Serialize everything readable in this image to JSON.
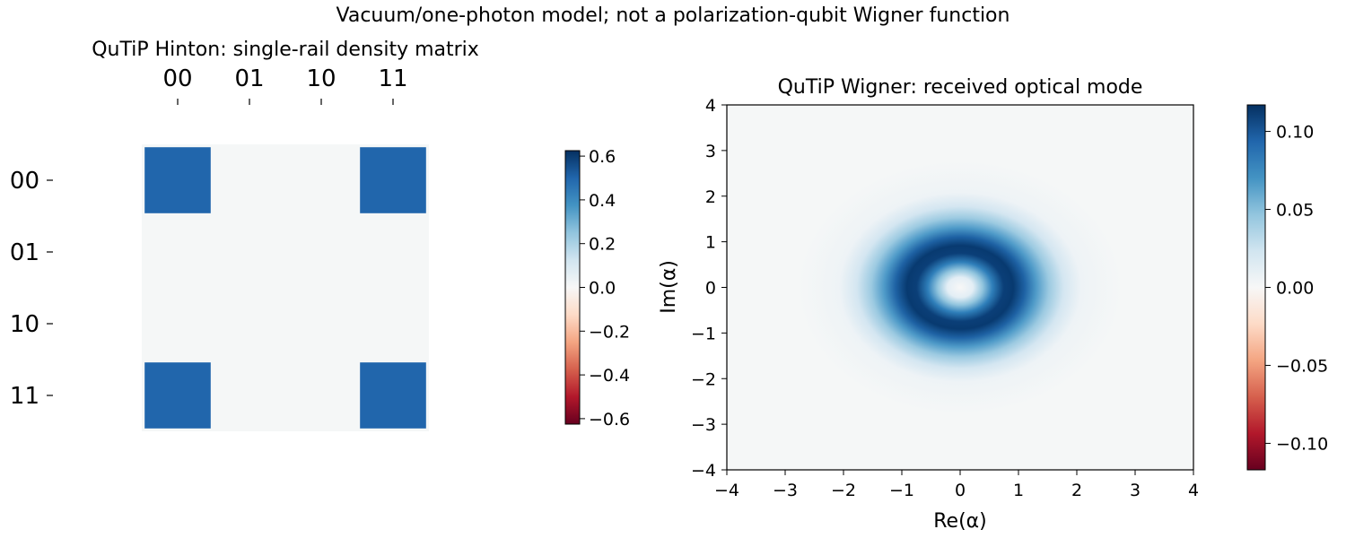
{
  "figure": {
    "suptitle": "Vacuum/one-photon model; not a polarization-qubit Wigner function"
  },
  "chart_data": [
    {
      "type": "heatmap",
      "subtype": "hinton",
      "title": "QuTiP Hinton: single-rail density matrix",
      "xlabel": "",
      "ylabel": "",
      "x_categories": [
        "00",
        "01",
        "10",
        "11"
      ],
      "y_categories": [
        "00",
        "01",
        "10",
        "11"
      ],
      "matrix": [
        [
          0.5,
          0,
          0,
          0.5
        ],
        [
          0,
          0,
          0,
          0
        ],
        [
          0,
          0,
          0,
          0
        ],
        [
          0.5,
          0,
          0,
          0.5
        ]
      ],
      "colorbar": {
        "range": [
          -0.625,
          0.625
        ],
        "ticks": [
          "0.6",
          "0.4",
          "0.2",
          "0.0",
          "−0.2",
          "−0.4",
          "−0.6"
        ],
        "tick_values": [
          0.6,
          0.4,
          0.2,
          0.0,
          -0.2,
          -0.4,
          -0.6
        ],
        "colormap": "RdBu"
      },
      "background_color": "#f5f7f7",
      "grid": false
    },
    {
      "type": "heatmap",
      "subtype": "wigner",
      "title": "QuTiP Wigner: received optical mode",
      "xlabel": "Re(α)",
      "ylabel": "Im(α)",
      "xlim": [
        -4,
        4
      ],
      "ylim": [
        -4,
        4
      ],
      "x_ticks": [
        "−4",
        "−3",
        "−2",
        "−1",
        "0",
        "1",
        "2",
        "3",
        "4"
      ],
      "y_ticks": [
        "4",
        "3",
        "2",
        "1",
        "0",
        "−1",
        "−2",
        "−3",
        "−4"
      ],
      "function": "ring distribution peaking near |α| ≈ 0.75, value ≈ 0.117 at peak, ≈ 0 at origin and beyond |α| ≈ 2.5",
      "peak_value": 0.117,
      "peak_radius": 0.75,
      "colorbar": {
        "range": [
          -0.117,
          0.117
        ],
        "ticks": [
          "0.10",
          "0.05",
          "0.00",
          "−0.05",
          "−0.10"
        ],
        "tick_values": [
          0.1,
          0.05,
          0.0,
          -0.05,
          -0.1
        ],
        "colormap": "RdBu"
      },
      "grid": false
    }
  ]
}
